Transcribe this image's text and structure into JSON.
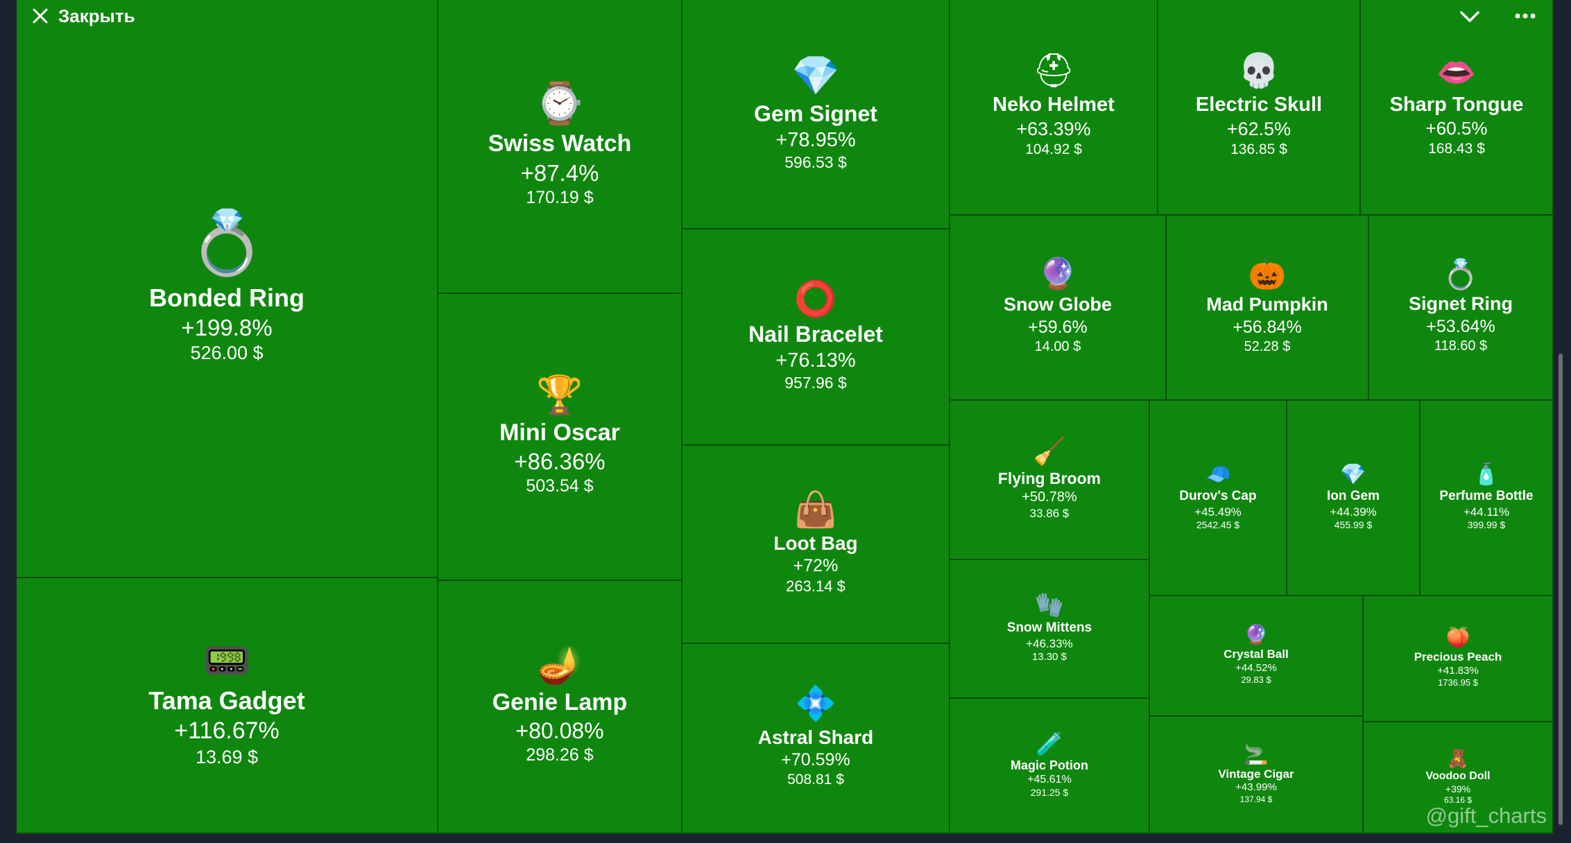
{
  "header": {
    "close_label": "Закрыть",
    "close_icon": "close-icon",
    "collapse_icon": "chevron-down-icon",
    "more_icon": "more-horizontal-icon"
  },
  "watermark": "@gift_charts",
  "colors": {
    "tile": "#0f870f",
    "border": "#0a4f0a",
    "text": "#ffffff",
    "background": "#1c2130"
  },
  "chart_data": {
    "type": "treemap",
    "title": "",
    "items": [
      {
        "name": "Bonded Ring",
        "change": "+199.8%",
        "price": "526.00 $",
        "icon": "ring-icon",
        "glyph": "💍"
      },
      {
        "name": "Tama Gadget",
        "change": "+116.67%",
        "price": "13.69 $",
        "icon": "tamagotchi-icon",
        "glyph": "📟"
      },
      {
        "name": "Swiss Watch",
        "change": "+87.4%",
        "price": "170.19 $",
        "icon": "watch-icon",
        "glyph": "⌚"
      },
      {
        "name": "Mini Oscar",
        "change": "+86.36%",
        "price": "503.54 $",
        "icon": "oscar-icon",
        "glyph": "🏆"
      },
      {
        "name": "Genie Lamp",
        "change": "+80.08%",
        "price": "298.26 $",
        "icon": "lamp-icon",
        "glyph": "🪔"
      },
      {
        "name": "Gem Signet",
        "change": "+78.95%",
        "price": "596.53 $",
        "icon": "gem-signet-icon",
        "glyph": "💎"
      },
      {
        "name": "Nail Bracelet",
        "change": "+76.13%",
        "price": "957.96 $",
        "icon": "bracelet-icon",
        "glyph": "⭕"
      },
      {
        "name": "Loot Bag",
        "change": "+72%",
        "price": "263.14 $",
        "icon": "bag-icon",
        "glyph": "👜"
      },
      {
        "name": "Astral Shard",
        "change": "+70.59%",
        "price": "508.81 $",
        "icon": "shard-icon",
        "glyph": "💠"
      },
      {
        "name": "Neko Helmet",
        "change": "+63.39%",
        "price": "104.92 $",
        "icon": "helmet-icon",
        "glyph": "⛑"
      },
      {
        "name": "Electric Skull",
        "change": "+62.5%",
        "price": "136.85 $",
        "icon": "skull-icon",
        "glyph": "💀"
      },
      {
        "name": "Sharp Tongue",
        "change": "+60.5%",
        "price": "168.43 $",
        "icon": "tongue-icon",
        "glyph": "👄"
      },
      {
        "name": "Snow Globe",
        "change": "+59.6%",
        "price": "14.00 $",
        "icon": "snow-globe-icon",
        "glyph": "🔮"
      },
      {
        "name": "Mad Pumpkin",
        "change": "+56.84%",
        "price": "52.28 $",
        "icon": "pumpkin-icon",
        "glyph": "🎃"
      },
      {
        "name": "Signet Ring",
        "change": "+53.64%",
        "price": "118.60 $",
        "icon": "signet-ring-icon",
        "glyph": "💍"
      },
      {
        "name": "Flying Broom",
        "change": "+50.78%",
        "price": "33.86 $",
        "icon": "broom-icon",
        "glyph": "🧹"
      },
      {
        "name": "Durov's Cap",
        "change": "+45.49%",
        "price": "2542.45 $",
        "icon": "cap-icon",
        "glyph": "🧢"
      },
      {
        "name": "Ion Gem",
        "change": "+44.39%",
        "price": "455.99 $",
        "icon": "ion-gem-icon",
        "glyph": "💎"
      },
      {
        "name": "Perfume Bottle",
        "change": "+44.11%",
        "price": "399.99 $",
        "icon": "perfume-icon",
        "glyph": "🧴"
      },
      {
        "name": "Snow Mittens",
        "change": "+46.33%",
        "price": "13.30 $",
        "icon": "mittens-icon",
        "glyph": "🧤"
      },
      {
        "name": "Crystal Ball",
        "change": "+44.52%",
        "price": "29.83 $",
        "icon": "crystal-ball-icon",
        "glyph": "🔮"
      },
      {
        "name": "Precious Peach",
        "change": "+41.83%",
        "price": "1736.95 $",
        "icon": "peach-icon",
        "glyph": "🍑"
      },
      {
        "name": "Magic Potion",
        "change": "+45.61%",
        "price": "291.25 $",
        "icon": "potion-icon",
        "glyph": "🧪"
      },
      {
        "name": "Vintage Cigar",
        "change": "+43.99%",
        "price": "137.94 $",
        "icon": "cigar-icon",
        "glyph": "🚬"
      },
      {
        "name": "Voodoo Doll",
        "change": "+39%",
        "price": "63.16 $",
        "icon": "voodoo-doll-icon",
        "glyph": "🧸"
      }
    ]
  }
}
